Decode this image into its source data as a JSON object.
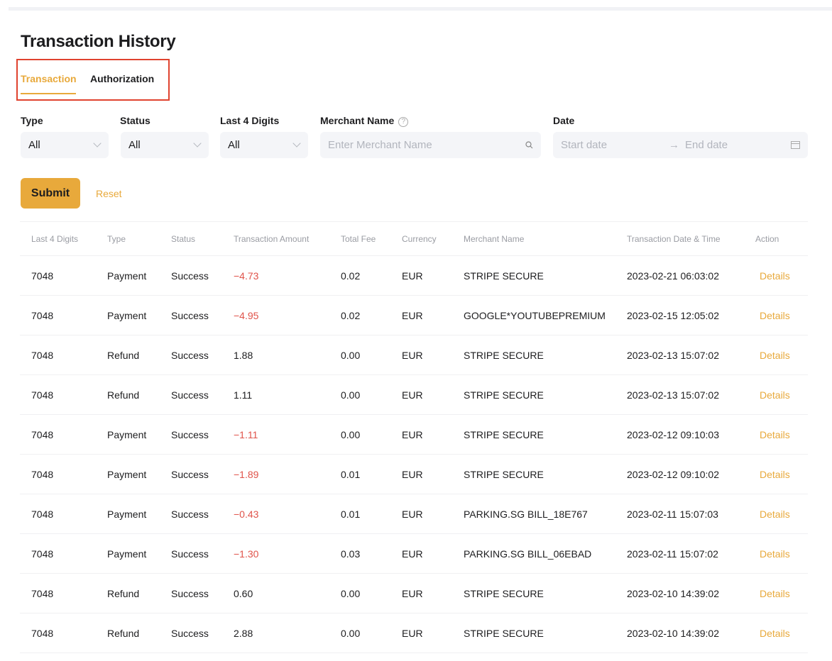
{
  "page_title": "Transaction History",
  "tabs": [
    {
      "label": "Transaction",
      "active": true
    },
    {
      "label": "Authorization",
      "active": false
    }
  ],
  "filters": {
    "type": {
      "label": "Type",
      "value": "All"
    },
    "status": {
      "label": "Status",
      "value": "All"
    },
    "last4": {
      "label": "Last 4 Digits",
      "value": "All"
    },
    "merchant": {
      "label": "Merchant Name",
      "placeholder": "Enter Merchant Name",
      "help_icon": "?"
    },
    "date": {
      "label": "Date",
      "start_placeholder": "Start date",
      "end_placeholder": "End date",
      "arrow": "→"
    }
  },
  "buttons": {
    "submit": "Submit",
    "reset": "Reset"
  },
  "table": {
    "headers": [
      "Last 4 Digits",
      "Type",
      "Status",
      "Transaction Amount",
      "Total Fee",
      "Currency",
      "Merchant Name",
      "Transaction Date & Time",
      "Action"
    ],
    "rows": [
      [
        "7048",
        "Payment",
        "Success",
        "−4.73",
        "0.02",
        "EUR",
        "STRIPE SECURE",
        "2023-02-21 06:03:02",
        "Details"
      ],
      [
        "7048",
        "Payment",
        "Success",
        "−4.95",
        "0.02",
        "EUR",
        "GOOGLE*YOUTUBEPREMIUM",
        "2023-02-15 12:05:02",
        "Details"
      ],
      [
        "7048",
        "Refund",
        "Success",
        "1.88",
        "0.00",
        "EUR",
        "STRIPE SECURE",
        "2023-02-13 15:07:02",
        "Details"
      ],
      [
        "7048",
        "Refund",
        "Success",
        "1.11",
        "0.00",
        "EUR",
        "STRIPE SECURE",
        "2023-02-13 15:07:02",
        "Details"
      ],
      [
        "7048",
        "Payment",
        "Success",
        "−1.11",
        "0.00",
        "EUR",
        "STRIPE SECURE",
        "2023-02-12 09:10:03",
        "Details"
      ],
      [
        "7048",
        "Payment",
        "Success",
        "−1.89",
        "0.01",
        "EUR",
        "STRIPE SECURE",
        "2023-02-12 09:10:02",
        "Details"
      ],
      [
        "7048",
        "Payment",
        "Success",
        "−0.43",
        "0.01",
        "EUR",
        "PARKING.SG BILL_18E767",
        "2023-02-11 15:07:03",
        "Details"
      ],
      [
        "7048",
        "Payment",
        "Success",
        "−1.30",
        "0.03",
        "EUR",
        "PARKING.SG BILL_06EBAD",
        "2023-02-11 15:07:02",
        "Details"
      ],
      [
        "7048",
        "Refund",
        "Success",
        "0.60",
        "0.00",
        "EUR",
        "STRIPE SECURE",
        "2023-02-10 14:39:02",
        "Details"
      ],
      [
        "7048",
        "Refund",
        "Success",
        "2.88",
        "0.00",
        "EUR",
        "STRIPE SECURE",
        "2023-02-10 14:39:02",
        "Details"
      ]
    ]
  },
  "colors": {
    "accent": "#e8a93b",
    "negative": "#e0534a",
    "annotation": "#e0432f"
  }
}
